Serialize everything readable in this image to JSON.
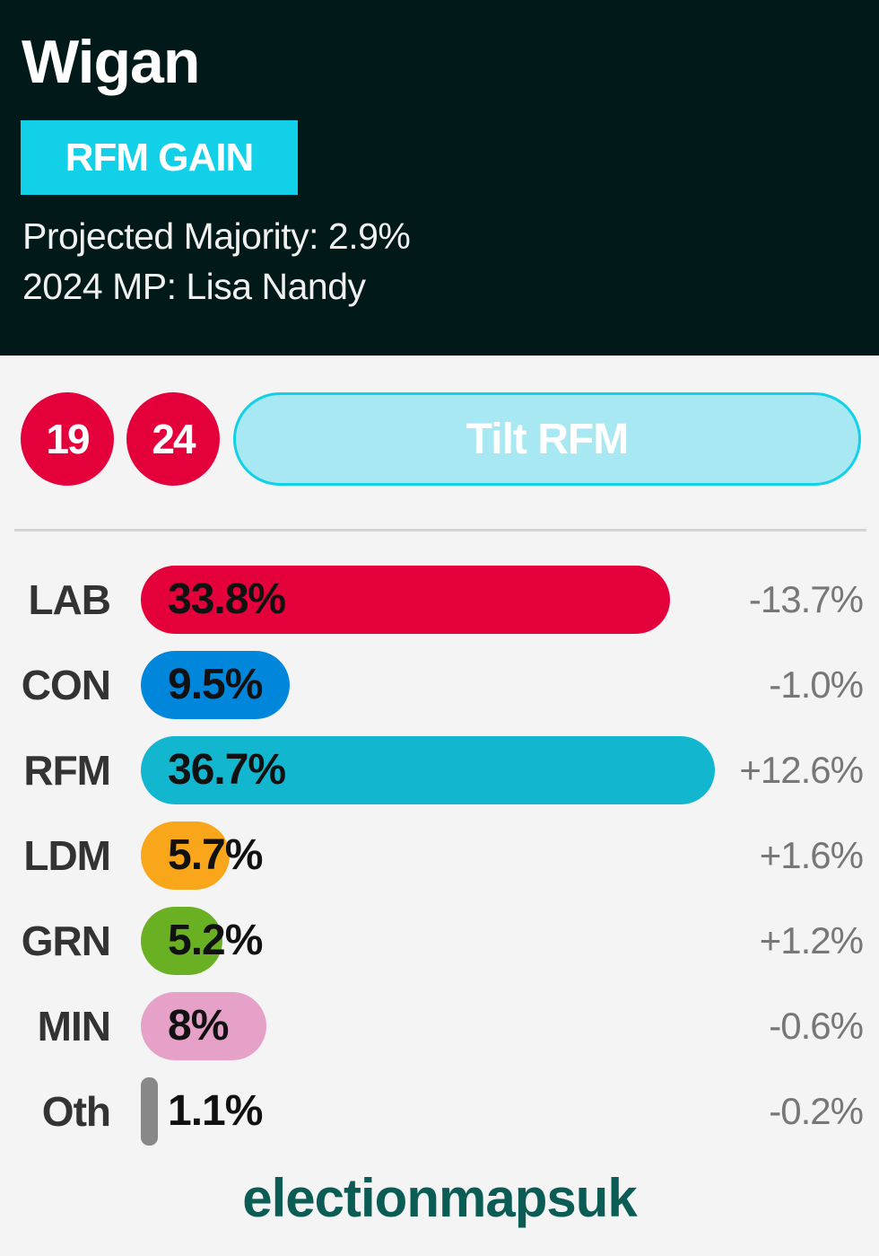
{
  "header": {
    "title": "Wigan",
    "badge": "RFM GAIN",
    "majority": "Projected Majority: 2.9%",
    "mp": "2024 MP: Lisa Nandy"
  },
  "controls": {
    "year1": "19",
    "year2": "24",
    "tilt_label": "Tilt RFM"
  },
  "colors": {
    "header_bg": "#02191a",
    "badge": "#12d0e8",
    "lab": "#e4003b"
  },
  "results": [
    {
      "party": "LAB",
      "share": 33.8,
      "label": "33.8%",
      "change": "-13.7%",
      "color": "#e4003b"
    },
    {
      "party": "CON",
      "share": 9.5,
      "label": "9.5%",
      "change": "-1.0%",
      "color": "#0087dc"
    },
    {
      "party": "RFM",
      "share": 36.7,
      "label": "36.7%",
      "change": "+12.6%",
      "color": "#12b6cf"
    },
    {
      "party": "LDM",
      "share": 5.7,
      "label": "5.7%",
      "change": "+1.6%",
      "color": "#faa61a"
    },
    {
      "party": "GRN",
      "share": 5.2,
      "label": "5.2%",
      "change": "+1.2%",
      "color": "#6ab023"
    },
    {
      "party": "MIN",
      "share": 8,
      "label": "8%",
      "change": "-0.6%",
      "color": "#e6a1c8"
    },
    {
      "party": "Oth",
      "share": 1.1,
      "label": "1.1%",
      "change": "-0.2%",
      "color": "#888888"
    }
  ],
  "footer": {
    "logo": "electionmapsuk"
  }
}
